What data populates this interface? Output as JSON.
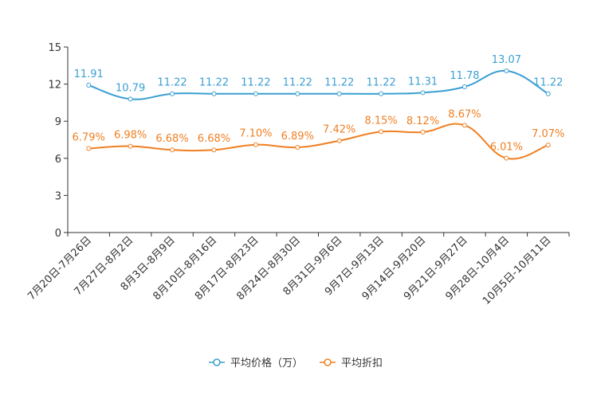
{
  "chart_data": {
    "type": "line",
    "title": "",
    "xlabel": "",
    "ylabel": "",
    "ylim": [
      0,
      15
    ],
    "yticks": [
      0,
      3,
      6,
      9,
      12,
      15
    ],
    "grid": false,
    "legend_position": "bottom",
    "categories": [
      "7月20日-7月26日",
      "7月27日-8月2日",
      "8月3日-8月9日",
      "8月10日-8月16日",
      "8月17日-8月23日",
      "8月24日-8月30日",
      "8月31日-9月6日",
      "9月7日-9月13日",
      "9月14日-9月20日",
      "9月21日-9月27日",
      "9月28日-10月4日",
      "10月5日-10月11日"
    ],
    "series": [
      {
        "name": "平均价格（万）",
        "color": "#3a9fd2",
        "values": [
          11.91,
          10.79,
          11.22,
          11.22,
          11.22,
          11.22,
          11.22,
          11.22,
          11.31,
          11.78,
          13.07,
          11.22
        ],
        "labels": [
          "11.91",
          "10.79",
          "11.22",
          "11.22",
          "11.22",
          "11.22",
          "11.22",
          "11.22",
          "11.31",
          "11.78",
          "13.07",
          "11.22"
        ]
      },
      {
        "name": "平均折扣",
        "color": "#f07f22",
        "values": [
          6.79,
          6.98,
          6.68,
          6.68,
          7.1,
          6.89,
          7.42,
          8.15,
          8.12,
          8.67,
          6.01,
          7.07
        ],
        "labels": [
          "6.79%",
          "6.98%",
          "6.68%",
          "6.68%",
          "7.10%",
          "6.89%",
          "7.42%",
          "8.15%",
          "8.12%",
          "8.67%",
          "6.01%",
          "7.07%"
        ]
      }
    ]
  }
}
